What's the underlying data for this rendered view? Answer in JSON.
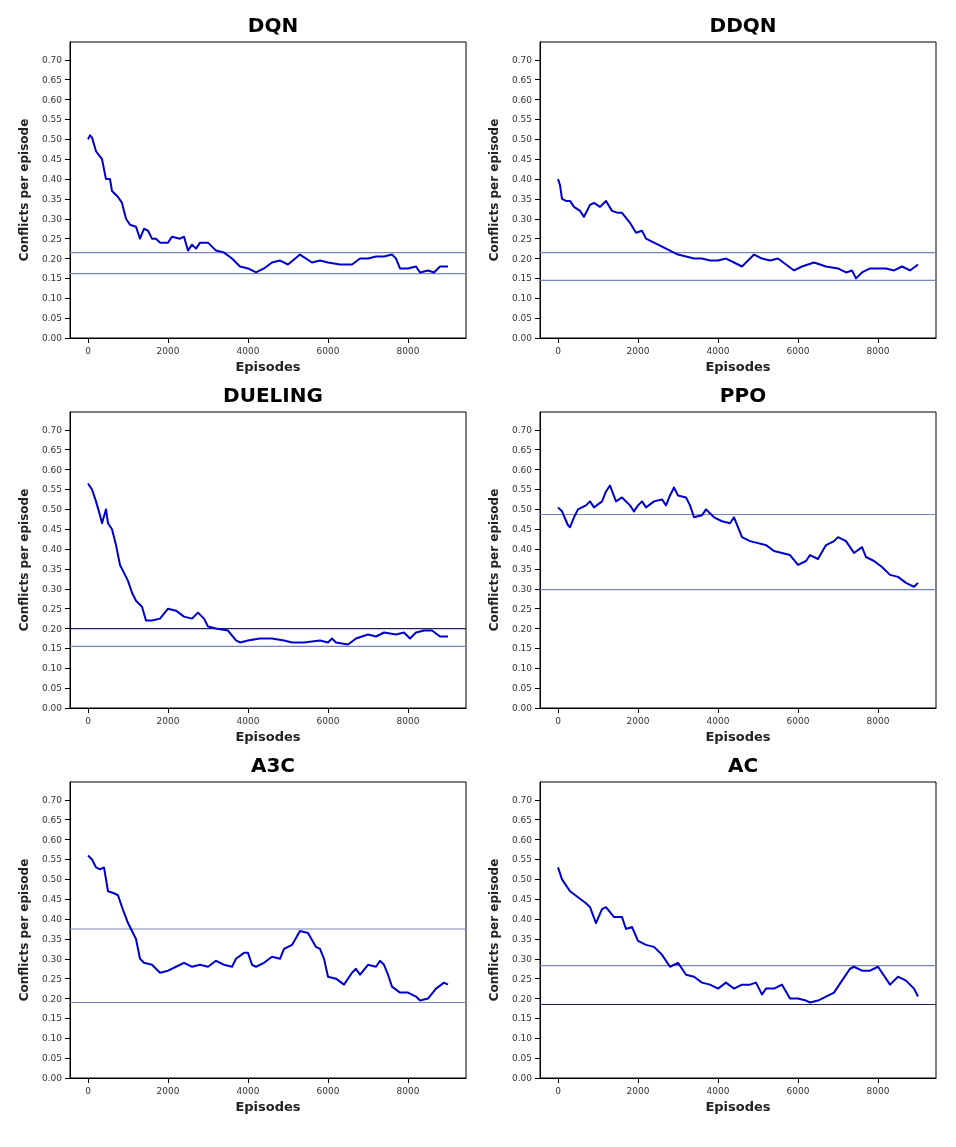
{
  "chart_data": [
    {
      "type": "line",
      "title": "DQN",
      "xlabel": "Episodes",
      "ylabel": "Conflicts per episode",
      "color": "#0000cc",
      "xlim": [
        -450,
        9450
      ],
      "ylim": [
        0,
        0.745
      ],
      "xticks": [
        0,
        2000,
        4000,
        6000,
        8000
      ],
      "yticks": [
        {
          "value": 0,
          "label": "0.00"
        },
        {
          "value": 0.05,
          "label": "0.05"
        },
        {
          "value": 0.1,
          "label": "0.10"
        },
        {
          "value": 0.15,
          "label": "0.15"
        },
        {
          "value": 0.2,
          "label": "0.20"
        },
        {
          "value": 0.25,
          "label": "0.25"
        },
        {
          "value": 0.3,
          "label": "0.30"
        },
        {
          "value": 0.35,
          "label": "0.35"
        },
        {
          "value": 0.4,
          "label": "0.40"
        },
        {
          "value": 0.45,
          "label": "0.45"
        },
        {
          "value": 0.5,
          "label": "0.50"
        },
        {
          "value": 0.55,
          "label": "0.55"
        },
        {
          "value": 0.6,
          "label": "0.60"
        },
        {
          "value": 0.65,
          "label": "0.65"
        },
        {
          "value": 0.7,
          "label": "0.70"
        }
      ],
      "x": [
        0,
        50,
        100,
        200,
        350,
        450,
        550,
        600,
        750,
        850,
        950,
        1050,
        1200,
        1300,
        1400,
        1500,
        1600,
        1700,
        1800,
        2000,
        2100,
        2300,
        2400,
        2500,
        2600,
        2700,
        2800,
        3000,
        3200,
        3400,
        3600,
        3800,
        4000,
        4200,
        4400,
        4600,
        4800,
        5000,
        5300,
        5600,
        5800,
        6000,
        6300,
        6600,
        6800,
        7000,
        7200,
        7400,
        7600,
        7700,
        7800,
        8000,
        8200,
        8300,
        8500,
        8650,
        8800,
        9000
      ],
      "values": [
        0.5,
        0.51,
        0.505,
        0.47,
        0.45,
        0.4,
        0.4,
        0.37,
        0.355,
        0.34,
        0.3,
        0.285,
        0.28,
        0.25,
        0.275,
        0.27,
        0.25,
        0.25,
        0.24,
        0.24,
        0.255,
        0.25,
        0.255,
        0.22,
        0.235,
        0.225,
        0.24,
        0.24,
        0.22,
        0.215,
        0.2,
        0.18,
        0.175,
        0.165,
        0.175,
        0.19,
        0.195,
        0.185,
        0.21,
        0.19,
        0.195,
        0.19,
        0.185,
        0.185,
        0.2,
        0.2,
        0.205,
        0.205,
        0.21,
        0.2,
        0.175,
        0.175,
        0.18,
        0.165,
        0.17,
        0.165,
        0.18,
        0.18
      ],
      "ref_lines": [
        {
          "axis": "y",
          "value": 0.215,
          "color": "#7b86b8"
        },
        {
          "axis": "y",
          "value": 0.162,
          "color": "#7b86b8"
        }
      ]
    },
    {
      "type": "line",
      "title": "DDQN",
      "xlabel": "Episodes",
      "ylabel": "Conflicts per episode",
      "color": "#0000cc",
      "xlim": [
        -450,
        9450
      ],
      "ylim": [
        0,
        0.745
      ],
      "xticks": [
        0,
        2000,
        4000,
        6000,
        8000
      ],
      "yticks": [
        {
          "value": 0,
          "label": "0.00"
        },
        {
          "value": 0.05,
          "label": "0.05"
        },
        {
          "value": 0.1,
          "label": "0.10"
        },
        {
          "value": 0.15,
          "label": "0.15"
        },
        {
          "value": 0.2,
          "label": "0.20"
        },
        {
          "value": 0.25,
          "label": "0.25"
        },
        {
          "value": 0.3,
          "label": "0.30"
        },
        {
          "value": 0.35,
          "label": "0.35"
        },
        {
          "value": 0.4,
          "label": "0.40"
        },
        {
          "value": 0.45,
          "label": "0.45"
        },
        {
          "value": 0.5,
          "label": "0.50"
        },
        {
          "value": 0.55,
          "label": "0.55"
        },
        {
          "value": 0.6,
          "label": "0.60"
        },
        {
          "value": 0.65,
          "label": "0.65"
        },
        {
          "value": 0.7,
          "label": "0.70"
        }
      ],
      "x": [
        0,
        50,
        100,
        200,
        300,
        400,
        550,
        650,
        800,
        900,
        1050,
        1200,
        1350,
        1500,
        1600,
        1800,
        1950,
        2100,
        2200,
        2400,
        2600,
        2800,
        3000,
        3200,
        3400,
        3600,
        3800,
        4000,
        4200,
        4400,
        4600,
        4900,
        5100,
        5300,
        5500,
        5700,
        5900,
        6100,
        6400,
        6700,
        7000,
        7200,
        7350,
        7450,
        7600,
        7800,
        8000,
        8200,
        8400,
        8600,
        8800,
        9000
      ],
      "values": [
        0.4,
        0.385,
        0.35,
        0.345,
        0.345,
        0.33,
        0.32,
        0.305,
        0.335,
        0.34,
        0.33,
        0.345,
        0.32,
        0.315,
        0.315,
        0.29,
        0.265,
        0.27,
        0.25,
        0.24,
        0.23,
        0.22,
        0.21,
        0.205,
        0.2,
        0.2,
        0.195,
        0.195,
        0.2,
        0.19,
        0.18,
        0.21,
        0.2,
        0.195,
        0.2,
        0.185,
        0.17,
        0.18,
        0.19,
        0.18,
        0.175,
        0.165,
        0.17,
        0.15,
        0.165,
        0.175,
        0.175,
        0.175,
        0.17,
        0.18,
        0.17,
        0.185
      ],
      "ref_lines": [
        {
          "axis": "y",
          "value": 0.215,
          "color": "#7b86b8"
        },
        {
          "axis": "y",
          "value": 0.145,
          "color": "#7b86b8"
        }
      ]
    },
    {
      "type": "line",
      "title": "DUELING",
      "xlabel": "Episodes",
      "ylabel": "Conflicts per episode",
      "color": "#0000cc",
      "xlim": [
        -450,
        9450
      ],
      "ylim": [
        0,
        0.745
      ],
      "xticks": [
        0,
        2000,
        4000,
        6000,
        8000
      ],
      "yticks": [
        {
          "value": 0,
          "label": "0.00"
        },
        {
          "value": 0.05,
          "label": "0.05"
        },
        {
          "value": 0.1,
          "label": "0.10"
        },
        {
          "value": 0.15,
          "label": "0.15"
        },
        {
          "value": 0.2,
          "label": "0.20"
        },
        {
          "value": 0.25,
          "label": "0.25"
        },
        {
          "value": 0.3,
          "label": "0.30"
        },
        {
          "value": 0.35,
          "label": "0.35"
        },
        {
          "value": 0.4,
          "label": "0.40"
        },
        {
          "value": 0.45,
          "label": "0.45"
        },
        {
          "value": 0.5,
          "label": "0.50"
        },
        {
          "value": 0.55,
          "label": "0.55"
        },
        {
          "value": 0.6,
          "label": "0.60"
        },
        {
          "value": 0.65,
          "label": "0.65"
        },
        {
          "value": 0.7,
          "label": "0.70"
        }
      ],
      "x": [
        0,
        100,
        200,
        300,
        350,
        450,
        500,
        600,
        700,
        800,
        900,
        1000,
        1100,
        1200,
        1350,
        1450,
        1600,
        1800,
        2000,
        2200,
        2400,
        2600,
        2750,
        2900,
        3000,
        3200,
        3500,
        3700,
        3800,
        4000,
        4300,
        4600,
        4900,
        5100,
        5400,
        5800,
        6000,
        6100,
        6200,
        6500,
        6700,
        7000,
        7200,
        7400,
        7700,
        7900,
        8050,
        8200,
        8400,
        8600,
        8800,
        9000
      ],
      "values": [
        0.565,
        0.55,
        0.52,
        0.485,
        0.465,
        0.5,
        0.465,
        0.45,
        0.41,
        0.36,
        0.34,
        0.32,
        0.29,
        0.27,
        0.255,
        0.22,
        0.22,
        0.225,
        0.25,
        0.245,
        0.23,
        0.225,
        0.24,
        0.225,
        0.205,
        0.2,
        0.195,
        0.17,
        0.165,
        0.17,
        0.175,
        0.175,
        0.17,
        0.165,
        0.165,
        0.17,
        0.165,
        0.175,
        0.165,
        0.16,
        0.175,
        0.185,
        0.18,
        0.19,
        0.185,
        0.19,
        0.175,
        0.19,
        0.195,
        0.195,
        0.18,
        0.18
      ],
      "ref_lines": [
        {
          "axis": "y",
          "value": 0.2,
          "color": "#202060"
        },
        {
          "axis": "y",
          "value": 0.155,
          "color": "#7b86b8"
        }
      ]
    },
    {
      "type": "line",
      "title": "PPO",
      "xlabel": "Episodes",
      "ylabel": "Conflicts per episode",
      "color": "#0000cc",
      "xlim": [
        -450,
        9450
      ],
      "ylim": [
        0,
        0.745
      ],
      "xticks": [
        0,
        2000,
        4000,
        6000,
        8000
      ],
      "yticks": [
        {
          "value": 0,
          "label": "0.00"
        },
        {
          "value": 0.05,
          "label": "0.05"
        },
        {
          "value": 0.1,
          "label": "0.10"
        },
        {
          "value": 0.15,
          "label": "0.15"
        },
        {
          "value": 0.2,
          "label": "0.20"
        },
        {
          "value": 0.25,
          "label": "0.25"
        },
        {
          "value": 0.3,
          "label": "0.30"
        },
        {
          "value": 0.35,
          "label": "0.35"
        },
        {
          "value": 0.4,
          "label": "0.40"
        },
        {
          "value": 0.45,
          "label": "0.45"
        },
        {
          "value": 0.5,
          "label": "0.50"
        },
        {
          "value": 0.55,
          "label": "0.55"
        },
        {
          "value": 0.6,
          "label": "0.60"
        },
        {
          "value": 0.65,
          "label": "0.65"
        },
        {
          "value": 0.7,
          "label": "0.70"
        }
      ],
      "x": [
        0,
        100,
        250,
        300,
        400,
        500,
        700,
        800,
        900,
        1100,
        1200,
        1300,
        1450,
        1600,
        1800,
        1900,
        2000,
        2100,
        2200,
        2400,
        2600,
        2700,
        2800,
        2900,
        3000,
        3200,
        3300,
        3400,
        3600,
        3700,
        3900,
        4100,
        4300,
        4400,
        4600,
        4800,
        5000,
        5200,
        5400,
        5600,
        5800,
        6000,
        6200,
        6300,
        6500,
        6700,
        6900,
        7000,
        7200,
        7400,
        7600,
        7700,
        7900,
        8100,
        8300,
        8500,
        8700,
        8900,
        9000
      ],
      "values": [
        0.505,
        0.495,
        0.46,
        0.455,
        0.48,
        0.5,
        0.51,
        0.52,
        0.505,
        0.52,
        0.545,
        0.56,
        0.52,
        0.53,
        0.51,
        0.495,
        0.51,
        0.52,
        0.505,
        0.52,
        0.525,
        0.51,
        0.535,
        0.555,
        0.535,
        0.53,
        0.51,
        0.48,
        0.485,
        0.5,
        0.48,
        0.47,
        0.465,
        0.48,
        0.43,
        0.42,
        0.415,
        0.41,
        0.395,
        0.39,
        0.385,
        0.36,
        0.37,
        0.385,
        0.375,
        0.41,
        0.42,
        0.43,
        0.42,
        0.39,
        0.405,
        0.38,
        0.37,
        0.355,
        0.335,
        0.33,
        0.315,
        0.305,
        0.315
      ],
      "ref_lines": [
        {
          "axis": "y",
          "value": 0.487,
          "color": "#7b86b8"
        },
        {
          "axis": "y",
          "value": 0.298,
          "color": "#7b86b8"
        }
      ]
    },
    {
      "type": "line",
      "title": "A3C",
      "xlabel": "Episodes",
      "ylabel": "Conflicts per episode",
      "color": "#0000cc",
      "xlim": [
        -450,
        9450
      ],
      "ylim": [
        0,
        0.745
      ],
      "xticks": [
        0,
        2000,
        4000,
        6000,
        8000
      ],
      "yticks": [
        {
          "value": 0,
          "label": "0.00"
        },
        {
          "value": 0.05,
          "label": "0.05"
        },
        {
          "value": 0.1,
          "label": "0.10"
        },
        {
          "value": 0.15,
          "label": "0.15"
        },
        {
          "value": 0.2,
          "label": "0.20"
        },
        {
          "value": 0.25,
          "label": "0.25"
        },
        {
          "value": 0.3,
          "label": "0.30"
        },
        {
          "value": 0.35,
          "label": "0.35"
        },
        {
          "value": 0.4,
          "label": "0.40"
        },
        {
          "value": 0.45,
          "label": "0.45"
        },
        {
          "value": 0.5,
          "label": "0.50"
        },
        {
          "value": 0.55,
          "label": "0.55"
        },
        {
          "value": 0.6,
          "label": "0.60"
        },
        {
          "value": 0.65,
          "label": "0.65"
        },
        {
          "value": 0.7,
          "label": "0.70"
        }
      ],
      "x": [
        0,
        100,
        200,
        300,
        400,
        500,
        650,
        750,
        850,
        1000,
        1100,
        1200,
        1300,
        1400,
        1600,
        1800,
        2000,
        2200,
        2400,
        2600,
        2800,
        3000,
        3200,
        3400,
        3600,
        3700,
        3900,
        4000,
        4100,
        4200,
        4400,
        4600,
        4800,
        4900,
        5100,
        5300,
        5500,
        5700,
        5800,
        5900,
        6000,
        6200,
        6400,
        6600,
        6700,
        6800,
        7000,
        7200,
        7300,
        7400,
        7500,
        7600,
        7800,
        8000,
        8200,
        8300,
        8500,
        8700,
        8900,
        9000
      ],
      "values": [
        0.56,
        0.55,
        0.53,
        0.525,
        0.53,
        0.47,
        0.465,
        0.46,
        0.43,
        0.39,
        0.37,
        0.35,
        0.3,
        0.29,
        0.285,
        0.265,
        0.27,
        0.28,
        0.29,
        0.28,
        0.285,
        0.28,
        0.295,
        0.285,
        0.28,
        0.3,
        0.315,
        0.315,
        0.285,
        0.28,
        0.29,
        0.305,
        0.3,
        0.325,
        0.335,
        0.37,
        0.365,
        0.33,
        0.325,
        0.3,
        0.255,
        0.25,
        0.235,
        0.265,
        0.275,
        0.26,
        0.285,
        0.28,
        0.295,
        0.285,
        0.26,
        0.23,
        0.215,
        0.215,
        0.205,
        0.195,
        0.2,
        0.225,
        0.24,
        0.235
      ],
      "ref_lines": [
        {
          "axis": "y",
          "value": 0.375,
          "color": "#7b86b8"
        },
        {
          "axis": "y",
          "value": 0.19,
          "color": "#7b86b8"
        }
      ]
    },
    {
      "type": "line",
      "title": "AC",
      "xlabel": "Episodes",
      "ylabel": "Conflicts per episode",
      "color": "#0000cc",
      "xlim": [
        -450,
        9450
      ],
      "ylim": [
        0,
        0.745
      ],
      "xticks": [
        0,
        2000,
        4000,
        6000,
        8000
      ],
      "yticks": [
        {
          "value": 0,
          "label": "0.00"
        },
        {
          "value": 0.05,
          "label": "0.05"
        },
        {
          "value": 0.1,
          "label": "0.10"
        },
        {
          "value": 0.15,
          "label": "0.15"
        },
        {
          "value": 0.2,
          "label": "0.20"
        },
        {
          "value": 0.25,
          "label": "0.25"
        },
        {
          "value": 0.3,
          "label": "0.30"
        },
        {
          "value": 0.35,
          "label": "0.35"
        },
        {
          "value": 0.4,
          "label": "0.40"
        },
        {
          "value": 0.45,
          "label": "0.45"
        },
        {
          "value": 0.5,
          "label": "0.50"
        },
        {
          "value": 0.55,
          "label": "0.55"
        },
        {
          "value": 0.6,
          "label": "0.60"
        },
        {
          "value": 0.65,
          "label": "0.65"
        },
        {
          "value": 0.7,
          "label": "0.70"
        }
      ],
      "x": [
        0,
        100,
        300,
        500,
        700,
        800,
        950,
        1100,
        1200,
        1400,
        1600,
        1700,
        1850,
        2000,
        2200,
        2400,
        2600,
        2800,
        3000,
        3200,
        3400,
        3600,
        3800,
        4000,
        4200,
        4400,
        4600,
        4800,
        4950,
        5100,
        5200,
        5400,
        5600,
        5800,
        6000,
        6200,
        6300,
        6500,
        6700,
        6900,
        7100,
        7300,
        7400,
        7600,
        7800,
        8000,
        8200,
        8300,
        8500,
        8700,
        8900,
        9000
      ],
      "values": [
        0.53,
        0.5,
        0.47,
        0.455,
        0.44,
        0.43,
        0.39,
        0.425,
        0.43,
        0.405,
        0.405,
        0.375,
        0.38,
        0.345,
        0.335,
        0.33,
        0.31,
        0.28,
        0.29,
        0.26,
        0.255,
        0.24,
        0.235,
        0.225,
        0.24,
        0.225,
        0.235,
        0.235,
        0.24,
        0.21,
        0.225,
        0.225,
        0.235,
        0.2,
        0.2,
        0.195,
        0.19,
        0.195,
        0.205,
        0.215,
        0.245,
        0.275,
        0.28,
        0.27,
        0.27,
        0.28,
        0.25,
        0.235,
        0.255,
        0.245,
        0.225,
        0.205
      ],
      "ref_lines": [
        {
          "axis": "y",
          "value": 0.283,
          "color": "#7b86b8"
        },
        {
          "axis": "y",
          "value": 0.185,
          "color": "#202060"
        }
      ]
    }
  ]
}
